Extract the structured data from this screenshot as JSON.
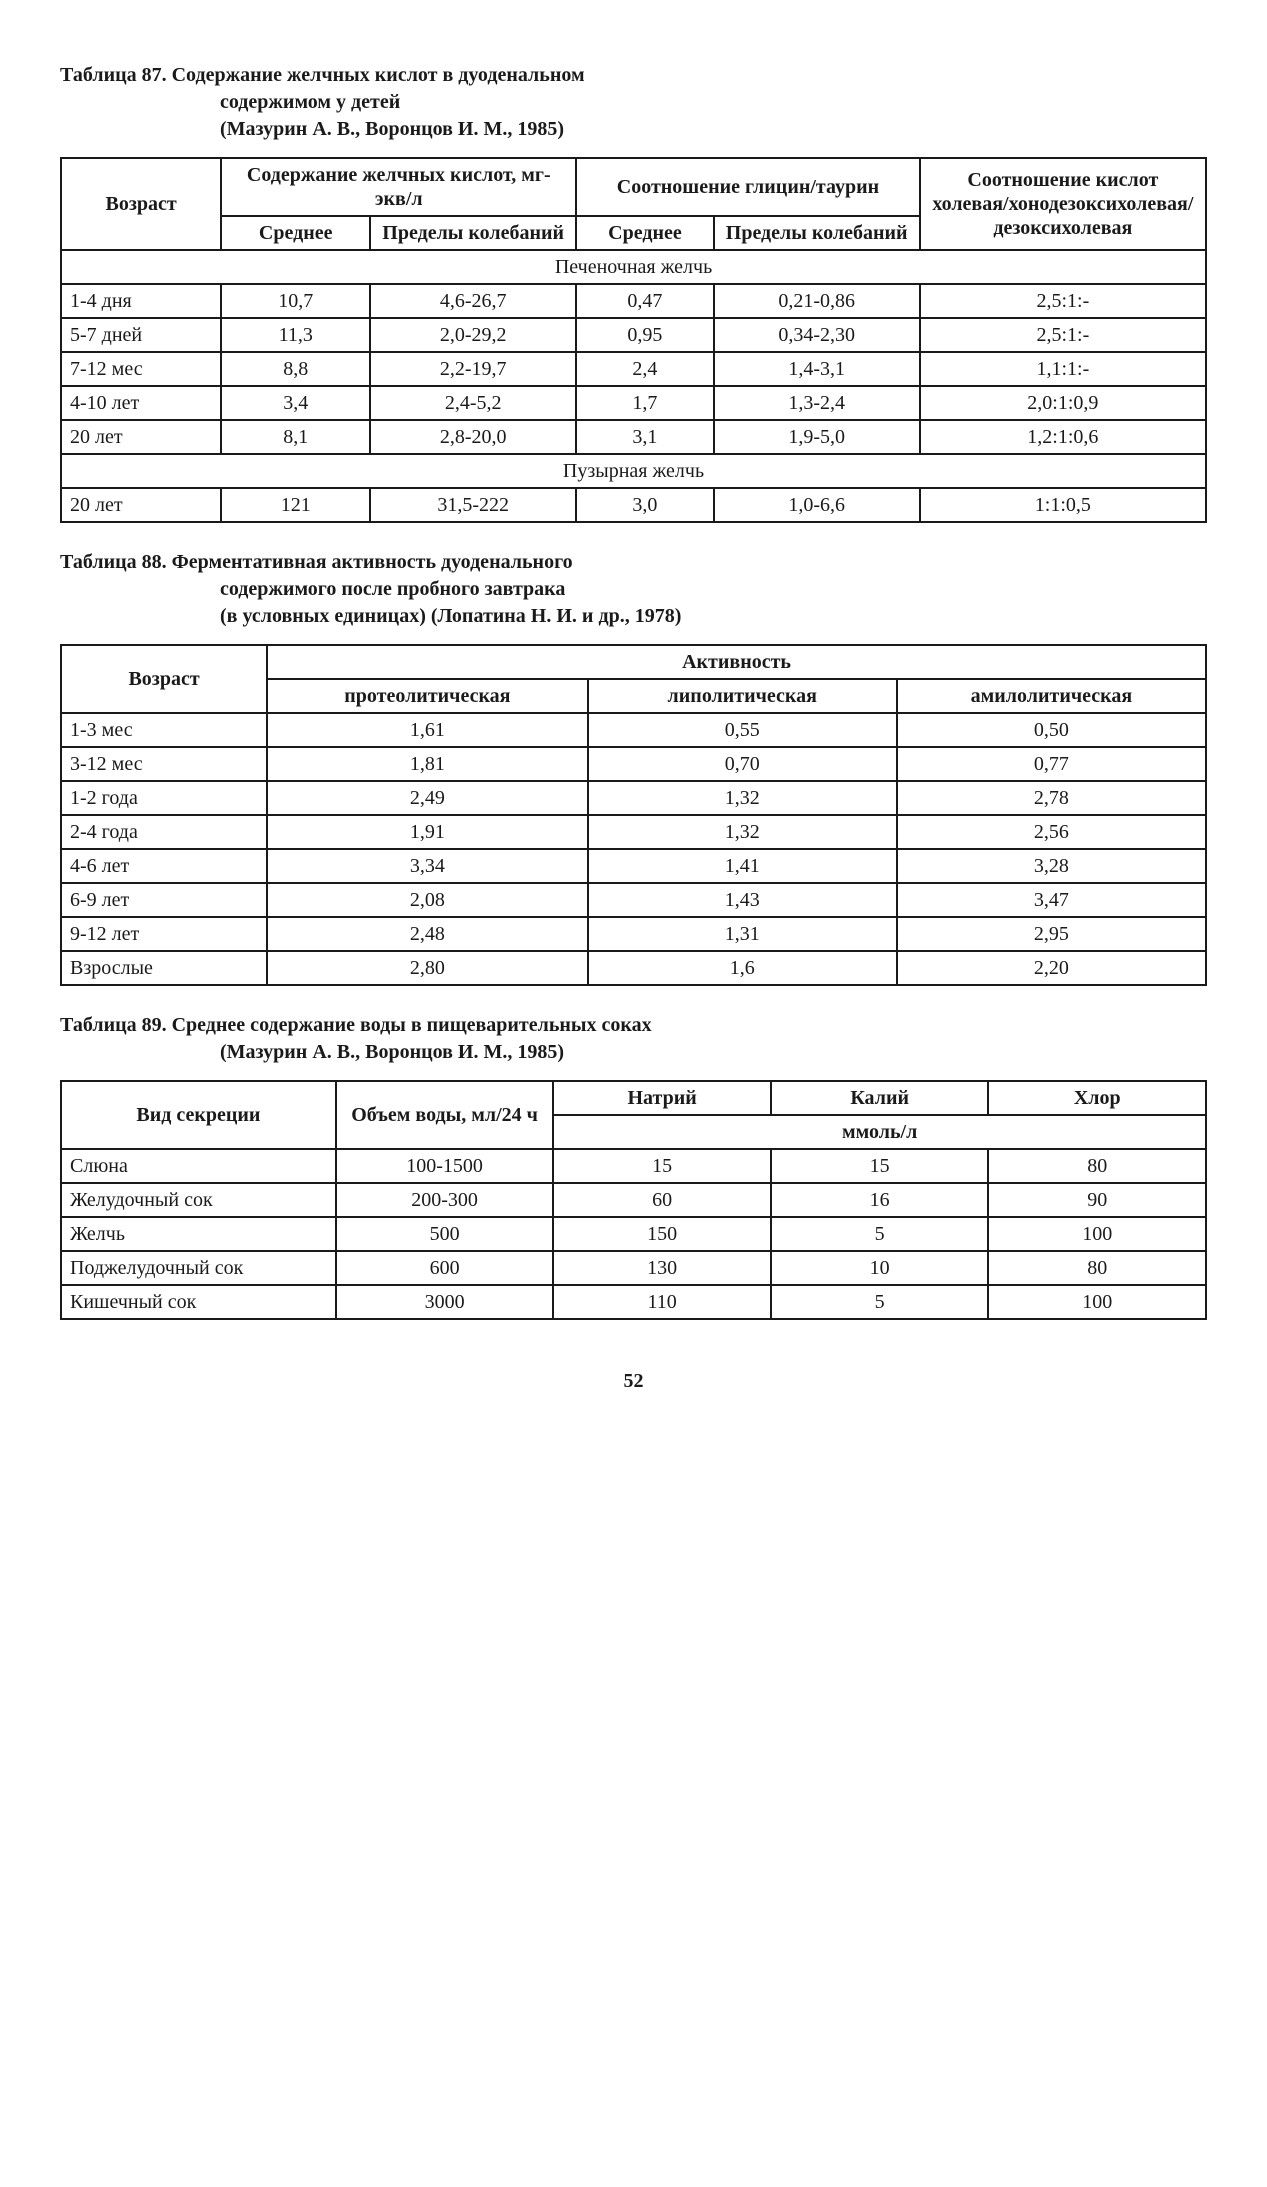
{
  "page_number": "52",
  "colors": {
    "text": "#1a1a1a",
    "background": "#ffffff",
    "border": "#1a1a1a"
  },
  "typography": {
    "family": "Times New Roman",
    "body_size_pt": 15,
    "caption_weight": "bold"
  },
  "table87": {
    "caption": {
      "line1": "Таблица  87.  Содержание  желчных  кислот  в  дуоденальном",
      "line2": "содержимом  у  детей",
      "line3": "(Мазурин  А.  В.,  Воронцов  И.  М.,  1985)"
    },
    "header": {
      "age": "Возраст",
      "acids": "Содержание желчных кислот, мг-экв/л",
      "ratio_gt": "Соотношение глицин/таурин",
      "ratio_acids": "Соотношение кислот холевая/хоно­дезокси­холевая/дезок­сихолевая",
      "mean": "Среднее",
      "range": "Пределы колебаний",
      "mean2": "Среднее",
      "range2": "Пределы колебаний"
    },
    "section1": "Печеночная желчь",
    "section2": "Пузырная желчь",
    "rows_liver": [
      {
        "age": "1-4 дня",
        "mean": "10,7",
        "range": "4,6-26,7",
        "gt_mean": "0,47",
        "gt_range": "0,21-0,86",
        "ratio": "2,5:1:-"
      },
      {
        "age": "5-7 дней",
        "mean": "11,3",
        "range": "2,0-29,2",
        "gt_mean": "0,95",
        "gt_range": "0,34-2,30",
        "ratio": "2,5:1:-"
      },
      {
        "age": "7-12 мес",
        "mean": "8,8",
        "range": "2,2-19,7",
        "gt_mean": "2,4",
        "gt_range": "1,4-3,1",
        "ratio": "1,1:1:-"
      },
      {
        "age": "4-10 лет",
        "mean": "3,4",
        "range": "2,4-5,2",
        "gt_mean": "1,7",
        "gt_range": "1,3-2,4",
        "ratio": "2,0:1:0,9"
      },
      {
        "age": "20 лет",
        "mean": "8,1",
        "range": "2,8-20,0",
        "gt_mean": "3,1",
        "gt_range": "1,9-5,0",
        "ratio": "1,2:1:0,6"
      }
    ],
    "rows_bladder": [
      {
        "age": "20 лет",
        "mean": "121",
        "range": "31,5-222",
        "gt_mean": "3,0",
        "gt_range": "1,0-6,6",
        "ratio": "1:1:0,5"
      }
    ]
  },
  "table88": {
    "caption": {
      "line1": "Таблица  88.  Ферментативная  активность  дуоденального",
      "line2": "содержимого  после  пробного  завтрака",
      "line3": "(в  условных  единицах)  (Лопатина  Н.  И.  и  др.,  1978)"
    },
    "header": {
      "age": "Возраст",
      "activity": "Активность",
      "proteo": "протеолитическая",
      "lipo": "липолитическая",
      "amylo": "амилолитическая"
    },
    "rows": [
      {
        "age": "1-3 мес",
        "proteo": "1,61",
        "lipo": "0,55",
        "amylo": "0,50"
      },
      {
        "age": "3-12 мес",
        "proteo": "1,81",
        "lipo": "0,70",
        "amylo": "0,77"
      },
      {
        "age": "1-2 года",
        "proteo": "2,49",
        "lipo": "1,32",
        "amylo": "2,78"
      },
      {
        "age": "2-4 года",
        "proteo": "1,91",
        "lipo": "1,32",
        "amylo": "2,56"
      },
      {
        "age": "4-6 лет",
        "proteo": "3,34",
        "lipo": "1,41",
        "amylo": "3,28"
      },
      {
        "age": "6-9 лет",
        "proteo": "2,08",
        "lipo": "1,43",
        "amylo": "3,47"
      },
      {
        "age": "9-12 лет",
        "proteo": "2,48",
        "lipo": "1,31",
        "amylo": "2,95"
      },
      {
        "age": "Взрослые",
        "proteo": "2,80",
        "lipo": "1,6",
        "amylo": "2,20"
      }
    ]
  },
  "table89": {
    "caption": {
      "line1": "Таблица  89.  Среднее  содержание  воды  в  пищеварительных  соках",
      "line2": "(Мазурин  А.  В.,  Воронцов  И.  М.,  1985)"
    },
    "header": {
      "secretion": "Вид секреции",
      "volume": "Объем воды, мл/24 ч",
      "na": "Натрий",
      "k": "Калий",
      "cl": "Хлор",
      "unit": "ммоль/л"
    },
    "rows": [
      {
        "secretion": "Слюна",
        "volume": "100-1500",
        "na": "15",
        "k": "15",
        "cl": "80"
      },
      {
        "secretion": "Желудочный сок",
        "volume": "200-300",
        "na": "60",
        "k": "16",
        "cl": "90"
      },
      {
        "secretion": "Желчь",
        "volume": "500",
        "na": "150",
        "k": "5",
        "cl": "100"
      },
      {
        "secretion": "Поджелудочный сок",
        "volume": "600",
        "na": "130",
        "k": "10",
        "cl": "80"
      },
      {
        "secretion": "Кишечный сок",
        "volume": "3000",
        "na": "110",
        "k": "5",
        "cl": "100"
      }
    ]
  }
}
